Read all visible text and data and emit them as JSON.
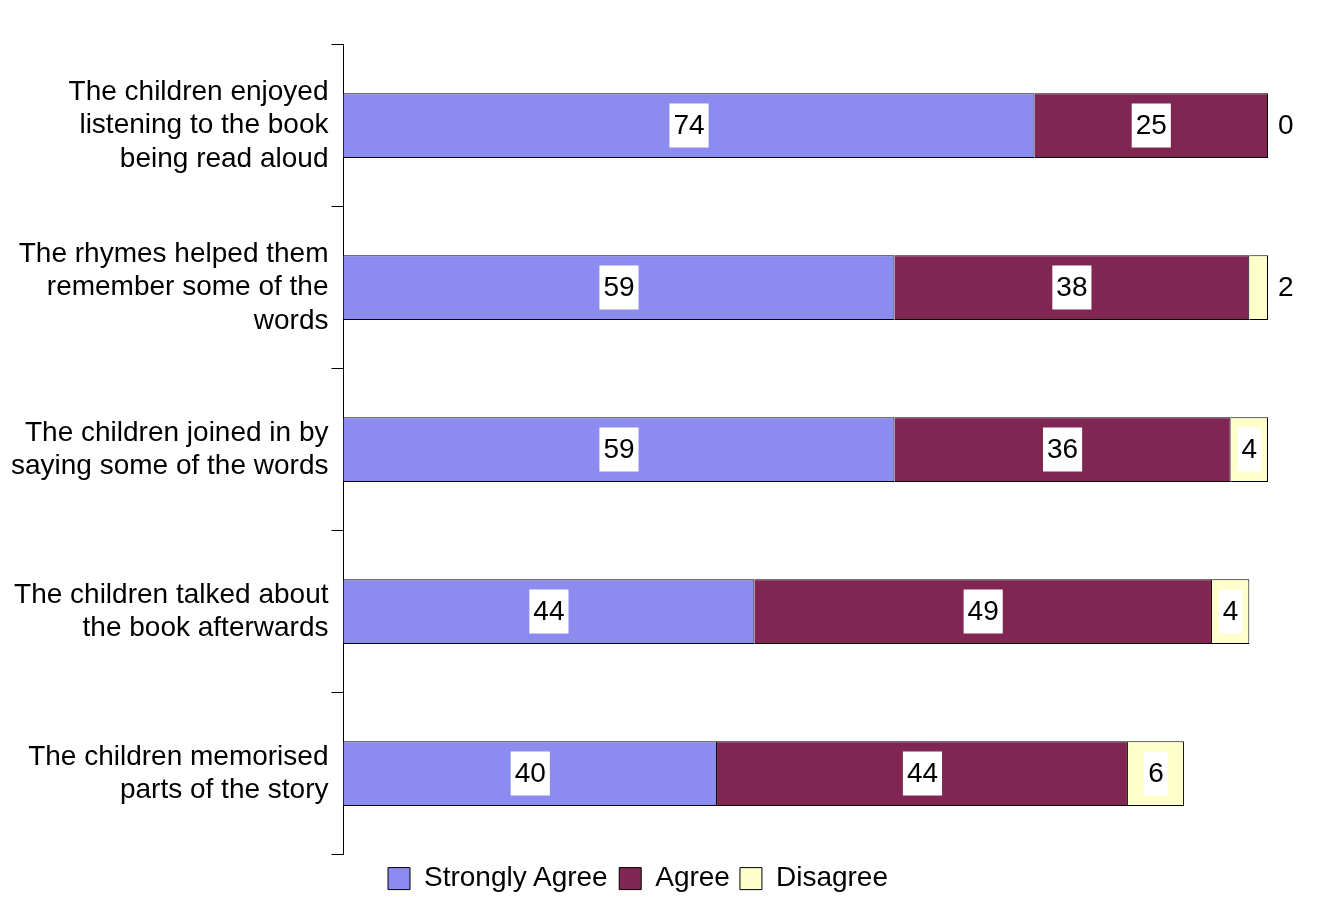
{
  "chart_data": {
    "type": "bar",
    "orientation": "horizontal",
    "stacked": true,
    "data_labels": true,
    "legend": "bottom",
    "grid": false,
    "categories": [
      "The children enjoyed listening to the book being read aloud",
      "The rhymes helped them remember some of the words",
      "The children joined in by saying some of the words",
      "The children talked about the book afterwards",
      "The children memorised parts of the story"
    ],
    "series": [
      {
        "name": "Strongly Agree",
        "color": "#8c8cf0",
        "values": [
          74,
          59,
          59,
          44,
          40
        ]
      },
      {
        "name": "Agree",
        "color": "#7f2652",
        "values": [
          25,
          38,
          36,
          49,
          44
        ]
      },
      {
        "name": "Disagree",
        "color": "#ffffcc",
        "values": [
          0,
          2,
          4,
          4,
          6
        ]
      }
    ]
  }
}
